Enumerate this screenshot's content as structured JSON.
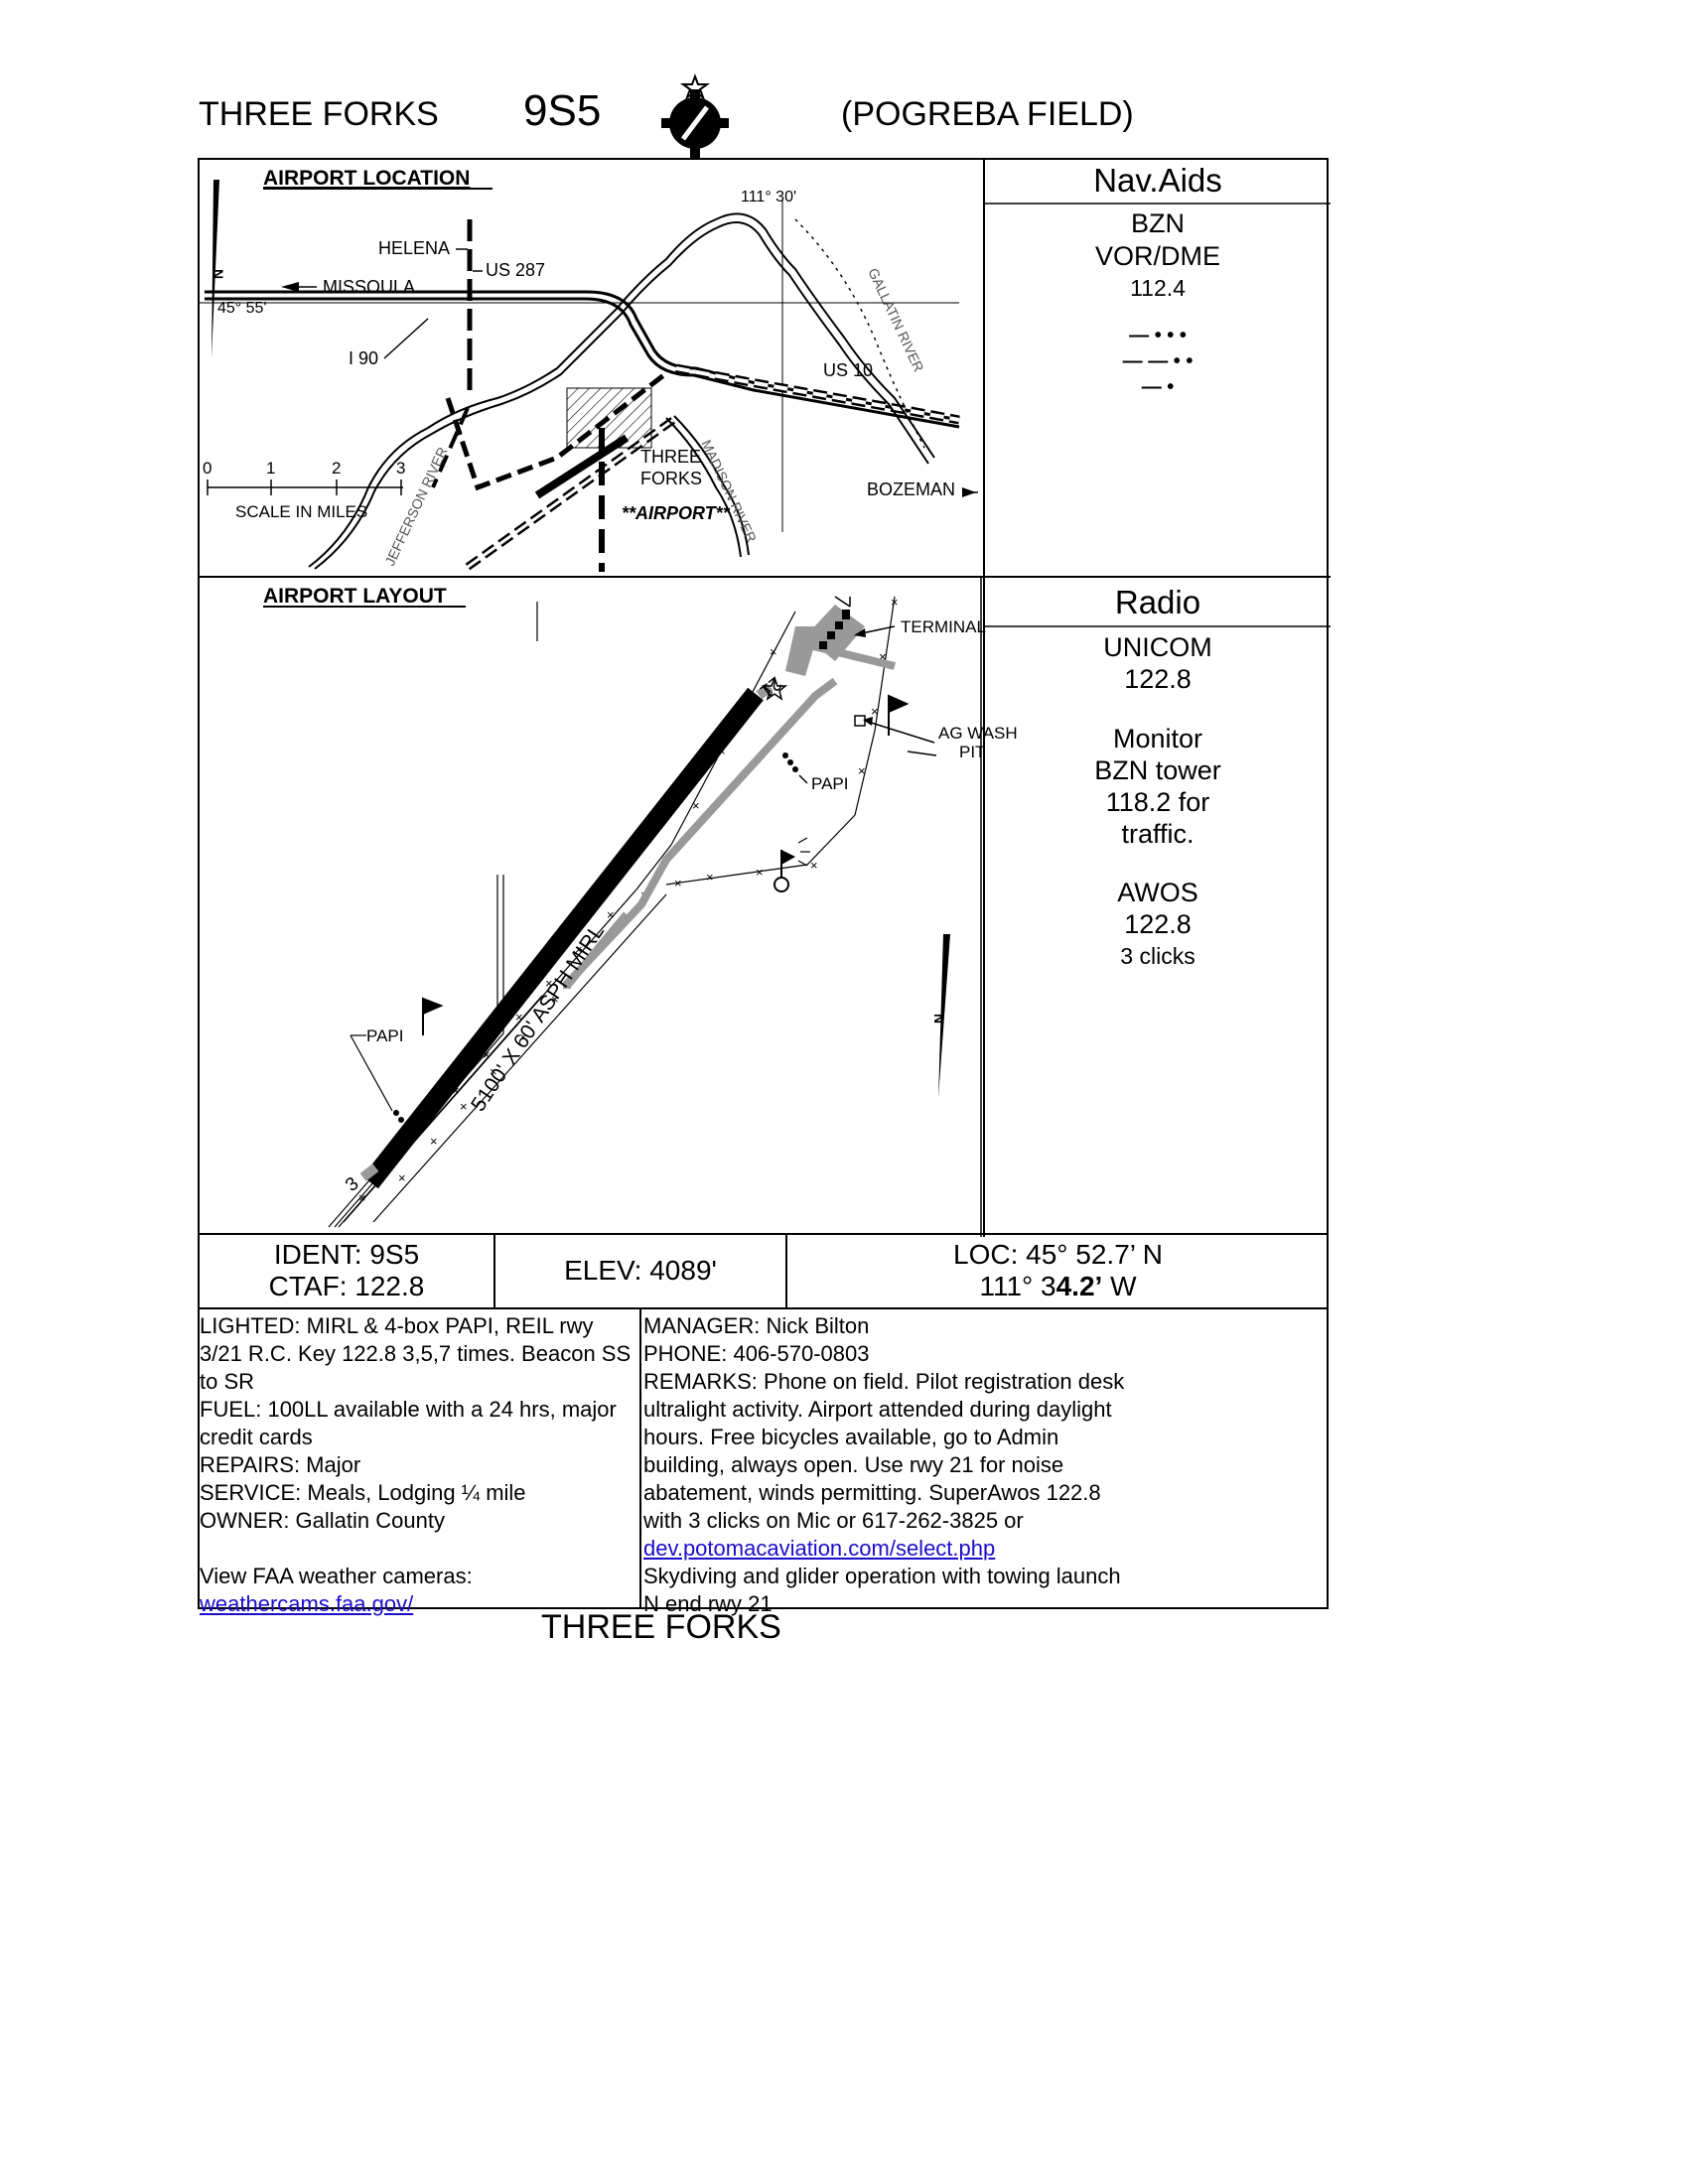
{
  "header": {
    "city": "THREE FORKS",
    "ident": "9S5",
    "field": "(POGREBA FIELD)"
  },
  "location_map": {
    "title": "AIRPORT LOCATION",
    "labels": {
      "helena": "HELENA",
      "missoula": "MISSOULA",
      "us287": "US 287",
      "lat": "45° 55'",
      "lon": "111° 30'",
      "i90": "I 90",
      "us10": "US 10",
      "gallatin": "GALLATIN RIVER",
      "three_forks_1": "THREE",
      "three_forks_2": "FORKS",
      "madison": "MADISON RIVER",
      "bozeman": "BOZEMAN",
      "jefferson": "JEFFERSON RIVER",
      "airport": "**AIRPORT**"
    },
    "scale": {
      "ticks": [
        "0",
        "1",
        "2",
        "3"
      ],
      "label": "SCALE IN MILES"
    }
  },
  "layout_map": {
    "title": "AIRPORT LAYOUT",
    "labels": {
      "terminal": "TERMINAL",
      "ag_wash_1": "AG WASH",
      "ag_wash_2": "PIT",
      "papi_north": "PAPI",
      "papi_south": "PAPI",
      "runway": "5100' X 60' ASPH MIRL",
      "rwy_21": "21",
      "rwy_3": "3"
    }
  },
  "navaids": {
    "title": "Nav.Aids",
    "station": "BZN",
    "type": "VOR/DME",
    "freq": "112.4",
    "morse": [
      "— • • •",
      "— — • •",
      "— •"
    ]
  },
  "radio": {
    "title": "Radio",
    "unicom_label": "UNICOM",
    "unicom_freq": "122.8",
    "monitor_lines": [
      "Monitor",
      "BZN tower",
      "118.2 for",
      "traffic."
    ],
    "awos_label": "AWOS",
    "awos_freq": "122.8",
    "awos_note": "3 clicks"
  },
  "info": {
    "ident": "IDENT: 9S5",
    "ctaf": "CTAF: 122.8",
    "elev": "ELEV: 4089'",
    "loc_lat": "LOC: 45° 52.7’ N",
    "loc_lon_prefix": "111° 3",
    "loc_lon_bold": "4.2’",
    "loc_lon_suffix": " W"
  },
  "notes_left": [
    "LIGHTED: MIRL & 4-box PAPI, REIL rwy",
    "3/21 R.C. Key 122.8 3,5,7 times. Beacon SS",
    "to SR",
    "FUEL: 100LL available with a 24 hrs, major",
    "credit cards",
    "REPAIRS: Major",
    "SERVICE: Meals, Lodging ¼ mile",
    "OWNER: Gallatin County",
    "",
    "View FAA weather cameras:"
  ],
  "notes_left_link": "weathercams.faa.gov/",
  "notes_right": [
    "MANAGER: Nick Bilton",
    "PHONE: 406-570-0803",
    "REMARKS: Phone on field. Pilot registration desk",
    "ultralight activity. Airport attended during daylight",
    "hours. Free bicycles available, go to Admin",
    "building, always open. Use rwy 21 for noise",
    "abatement, winds permitting. SuperAwos 122.8",
    "with 3 clicks on Mic or 617-262-3825 or"
  ],
  "notes_right_link": "dev.potomacaviation.com/select.php",
  "notes_right_after": [
    "Skydiving and glider operation with towing launch",
    "N end rwy 21"
  ],
  "footer": "THREE FORKS"
}
